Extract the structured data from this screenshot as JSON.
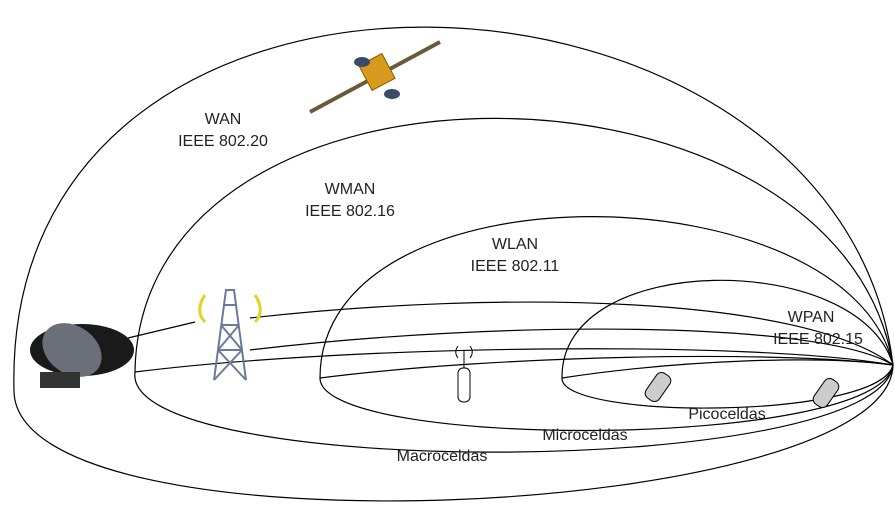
{
  "networks": [
    {
      "name": "WAN",
      "standard": "IEEE 802.20"
    },
    {
      "name": "WMAN",
      "standard": "IEEE 802.16"
    },
    {
      "name": "WLAN",
      "standard": "IEEE 802.11"
    },
    {
      "name": "WPAN",
      "standard": "IEEE 802.15"
    }
  ],
  "cells": [
    "Picoceldas",
    "Microceldas",
    "Macroceldas"
  ]
}
